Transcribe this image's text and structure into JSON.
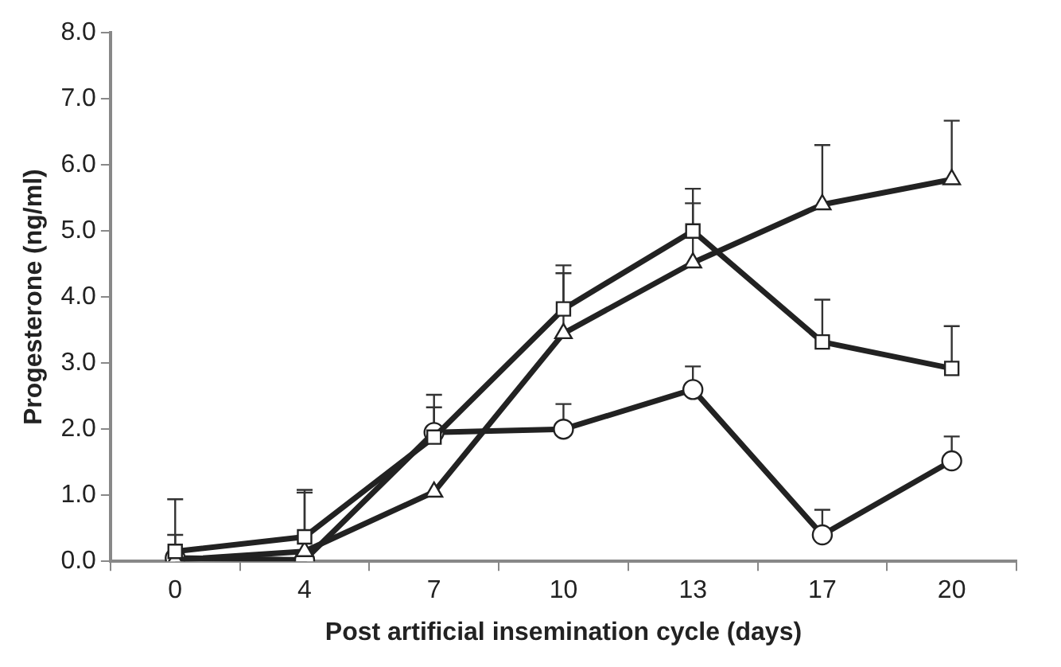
{
  "chart_data": {
    "type": "line",
    "xlabel": "Post artificial insemination cycle (days)",
    "ylabel": "Progesterone (ng/ml)",
    "categories": [
      "0",
      "4",
      "7",
      "10",
      "13",
      "17",
      "20"
    ],
    "ylim": [
      0,
      8
    ],
    "yticks": [
      {
        "value": 0,
        "label": "0.0"
      },
      {
        "value": 1,
        "label": "1.0"
      },
      {
        "value": 2,
        "label": "2.0"
      },
      {
        "value": 3,
        "label": "3.0"
      },
      {
        "value": 4,
        "label": "4.0"
      },
      {
        "value": 5,
        "label": "5.0"
      },
      {
        "value": 6,
        "label": "6.0"
      },
      {
        "value": 7,
        "label": "7.0"
      },
      {
        "value": 8,
        "label": "8.0"
      }
    ],
    "grid": false,
    "legend": false,
    "line_style": "solid",
    "series": [
      {
        "color": "#222222",
        "marker": "square",
        "values": [
          0.15,
          0.37,
          1.88,
          3.82,
          5.0,
          3.32,
          2.92
        ],
        "errors": [
          [
            0.15,
            0.94
          ],
          [
            0.37,
            1.08
          ],
          [
            1.88,
            2.52
          ],
          [
            3.82,
            4.48
          ],
          [
            5.0,
            5.64
          ],
          [
            3.32,
            3.96
          ],
          [
            2.92,
            3.56
          ]
        ]
      },
      {
        "color": "#222222",
        "marker": "triangle",
        "values": [
          0.02,
          0.15,
          1.05,
          3.45,
          4.52,
          5.4,
          5.78
        ],
        "errors": [
          null,
          null,
          null,
          [
            3.45,
            4.36
          ],
          [
            4.52,
            5.42
          ],
          [
            5.4,
            6.3
          ],
          [
            5.78,
            6.67
          ]
        ]
      },
      {
        "color": "#222222",
        "marker": "circle",
        "values": [
          0.05,
          0.02,
          1.95,
          2.0,
          2.6,
          0.4,
          1.52
        ],
        "errors": [
          [
            0.05,
            0.4
          ],
          [
            0.02,
            1.04
          ],
          [
            1.95,
            2.33
          ],
          [
            2.0,
            2.38
          ],
          [
            2.6,
            2.95
          ],
          [
            0.4,
            0.78
          ],
          [
            1.52,
            1.89
          ]
        ]
      }
    ]
  }
}
